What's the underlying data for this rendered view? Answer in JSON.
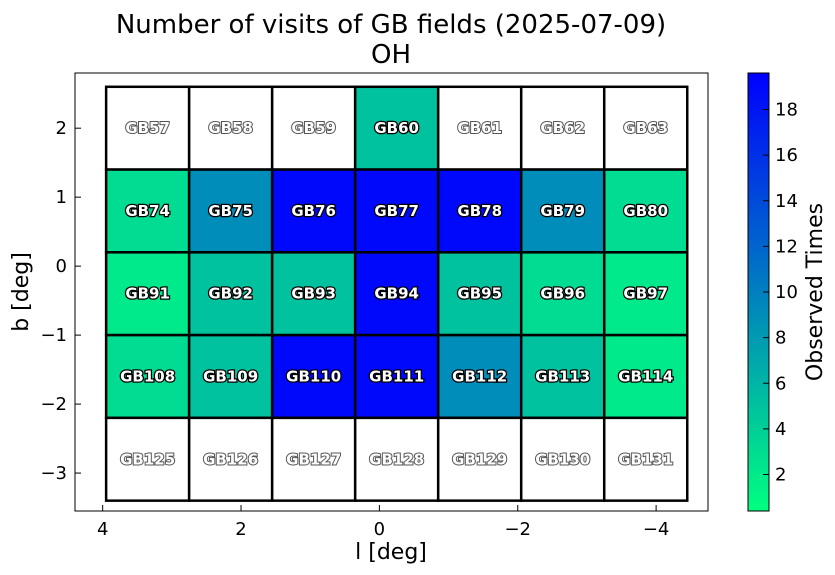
{
  "chart_data": {
    "type": "heatmap",
    "title": "Number of visits of GB fields (2025-07-09)",
    "subtitle": "OH",
    "xlabel": "l [deg]",
    "ylabel": "b [deg]",
    "xlim": [
      4.4,
      -4.75
    ],
    "ylim": [
      -3.55,
      2.8
    ],
    "x_ticks": [
      4,
      2,
      0,
      -2,
      -4
    ],
    "x_tick_labels": [
      "4",
      "2",
      "0",
      "−2",
      "−4"
    ],
    "y_ticks": [
      2,
      1,
      0,
      -1,
      -2,
      -3
    ],
    "y_tick_labels": [
      "2",
      "1",
      "0",
      "−1",
      "−2",
      "−3"
    ],
    "grid": false,
    "colorbar": {
      "label": "Observed Times",
      "min": 0.4,
      "max": 19.6,
      "ticks": [
        2,
        4,
        6,
        8,
        10,
        12,
        14,
        16,
        18
      ],
      "tick_labels": [
        "2",
        "4",
        "6",
        "8",
        "10",
        "12",
        "14",
        "16",
        "18"
      ],
      "colormap": "winter_r",
      "color_low": "#00ff80",
      "color_high": "#0000ff"
    },
    "field_grid": {
      "l_edges": [
        3.95,
        2.75,
        1.55,
        0.35,
        -0.85,
        -2.05,
        -3.25,
        -4.45
      ],
      "b_edges": [
        2.6,
        1.4,
        0.2,
        -1.0,
        -2.2,
        -3.4
      ]
    },
    "fields": [
      {
        "name": "GB57",
        "visits": 0
      },
      {
        "name": "GB58",
        "visits": 0
      },
      {
        "name": "GB59",
        "visits": 0
      },
      {
        "name": "GB60",
        "visits": 5
      },
      {
        "name": "GB61",
        "visits": 0
      },
      {
        "name": "GB62",
        "visits": 0
      },
      {
        "name": "GB63",
        "visits": 0
      },
      {
        "name": "GB74",
        "visits": 3
      },
      {
        "name": "GB75",
        "visits": 9
      },
      {
        "name": "GB76",
        "visits": 19
      },
      {
        "name": "GB77",
        "visits": 19
      },
      {
        "name": "GB78",
        "visits": 19
      },
      {
        "name": "GB79",
        "visits": 9
      },
      {
        "name": "GB80",
        "visits": 3
      },
      {
        "name": "GB91",
        "visits": 2
      },
      {
        "name": "GB92",
        "visits": 5
      },
      {
        "name": "GB93",
        "visits": 5
      },
      {
        "name": "GB94",
        "visits": 19
      },
      {
        "name": "GB95",
        "visits": 5
      },
      {
        "name": "GB96",
        "visits": 3
      },
      {
        "name": "GB97",
        "visits": 2
      },
      {
        "name": "GB108",
        "visits": 3
      },
      {
        "name": "GB109",
        "visits": 5
      },
      {
        "name": "GB110",
        "visits": 19
      },
      {
        "name": "GB111",
        "visits": 19
      },
      {
        "name": "GB112",
        "visits": 9
      },
      {
        "name": "GB113",
        "visits": 5
      },
      {
        "name": "GB114",
        "visits": 2
      },
      {
        "name": "GB125",
        "visits": 0
      },
      {
        "name": "GB126",
        "visits": 0
      },
      {
        "name": "GB127",
        "visits": 0
      },
      {
        "name": "GB128",
        "visits": 0
      },
      {
        "name": "GB129",
        "visits": 0
      },
      {
        "name": "GB130",
        "visits": 0
      },
      {
        "name": "GB131",
        "visits": 0
      }
    ],
    "columns": 7,
    "rows": 5
  }
}
